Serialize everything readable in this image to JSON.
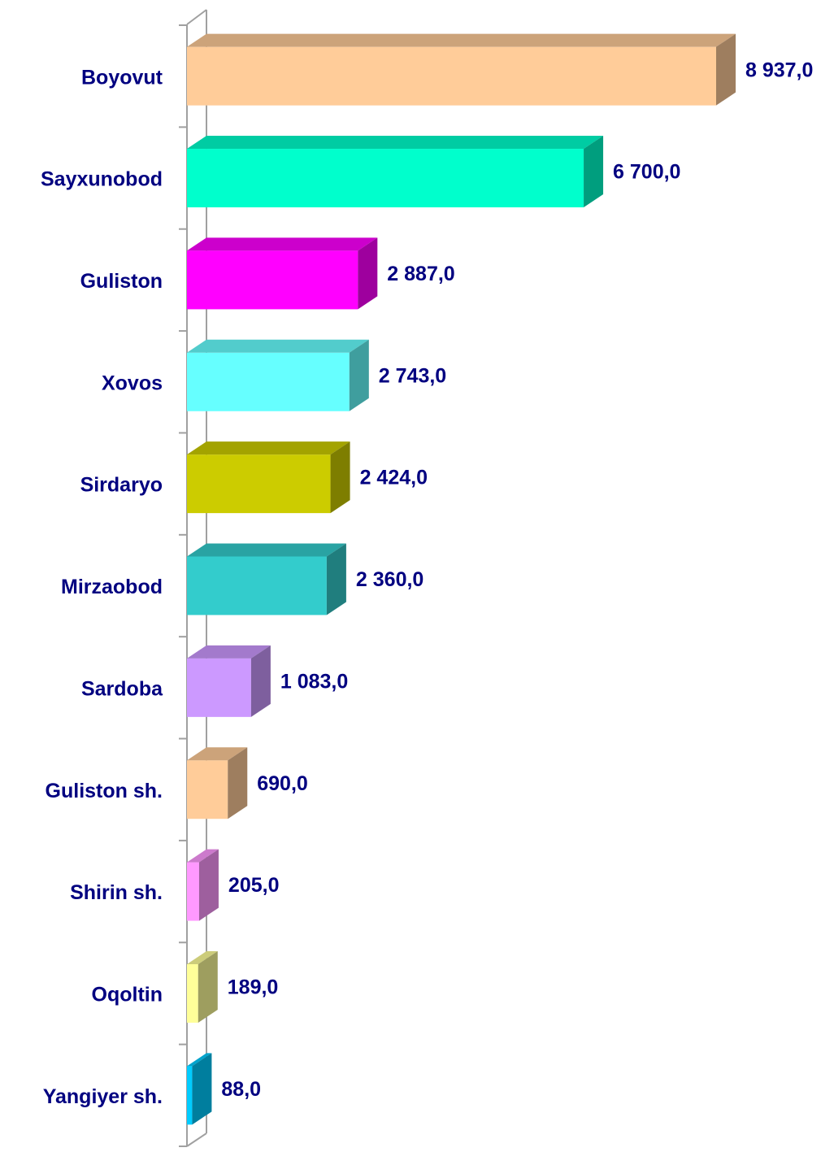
{
  "chart_data": {
    "type": "bar",
    "orientation": "horizontal",
    "categories": [
      "Boyovut",
      "Sayxunobod",
      "Guliston",
      "Xovos",
      "Sirdaryo",
      "Mirzaobod",
      "Sardoba",
      "Guliston sh.",
      "Shirin sh.",
      "Oqoltin",
      "Yangiyer sh."
    ],
    "values": [
      8937,
      6700,
      2887,
      2743,
      2424,
      2360,
      1083,
      690,
      205,
      189,
      88
    ],
    "value_labels": [
      "8 937,0",
      "6 700,0",
      "2 887,0",
      "2 743,0",
      "2 424,0",
      "2 360,0",
      "1 083,0",
      "690,0",
      "205,0",
      "189,0",
      "88,0"
    ],
    "colors": [
      "#ffcc99",
      "#00ffcc",
      "#ff00ff",
      "#66ffff",
      "#cccc00",
      "#33cccc",
      "#cc99ff",
      "#ffcc99",
      "#ff99ff",
      "#ffff99",
      "#00ccff"
    ]
  }
}
